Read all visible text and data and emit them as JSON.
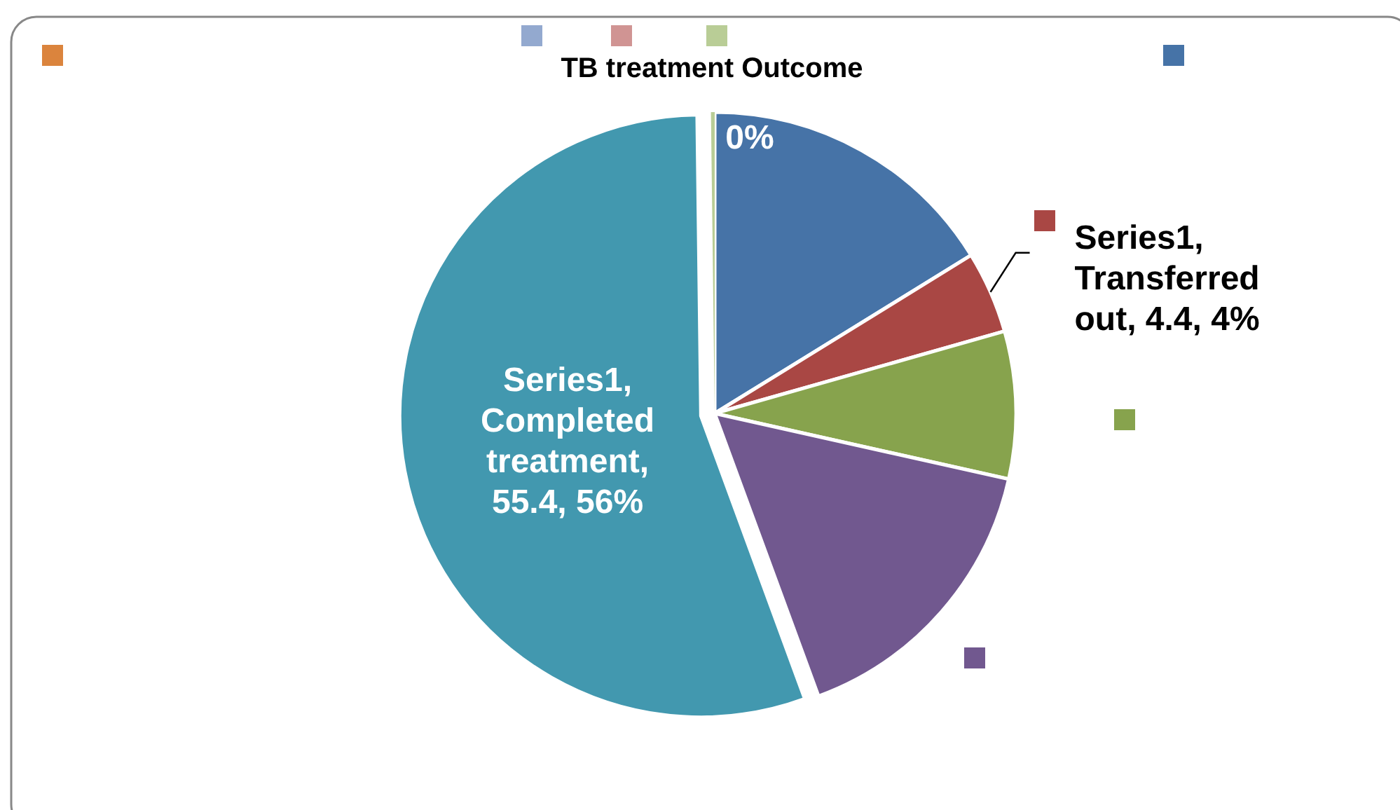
{
  "chart_data": {
    "type": "pie",
    "title": "TB treatment Outcome",
    "categories": [
      null,
      null,
      null,
      null,
      null,
      null,
      null,
      null,
      null
    ],
    "values": [
      16.2,
      4.4,
      7.9,
      15.9,
      55.4,
      0,
      0,
      0,
      0.2
    ],
    "colors": [
      "#4673a7",
      "#a94744",
      "#87a34d",
      "#71588f",
      "#4298af",
      "#db843d",
      "#93a9cf",
      "#d09493",
      "#b9cd96"
    ],
    "value_labels": [
      null,
      "Series1, Transferred out, 4.4, 4%",
      null,
      null,
      "Series1, Completed treatment, 55.4, 56%",
      null,
      null,
      null,
      "0%"
    ]
  }
}
